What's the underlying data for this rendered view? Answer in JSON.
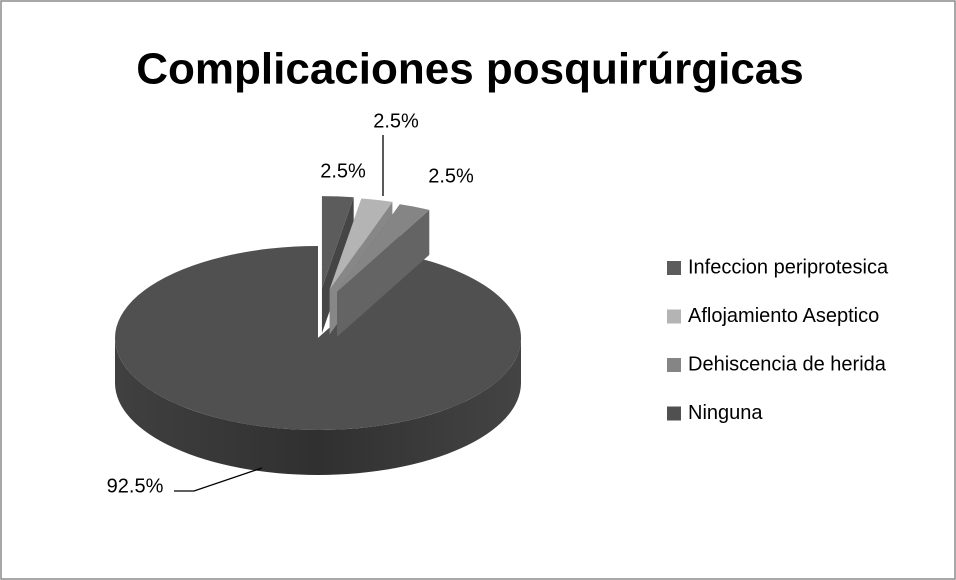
{
  "chart_data": {
    "type": "pie",
    "title": "Complicaciones posquirúrgicas",
    "categories": [
      "Infeccion periprotesica",
      "Aflojamiento Aseptico",
      "Dehiscencia de herida",
      "Ninguna"
    ],
    "values": [
      2.5,
      2.5,
      2.5,
      92.5
    ],
    "value_labels": [
      "2.5%",
      "2.5%",
      "2.5%",
      "92.5%"
    ],
    "colors": [
      "#5c5c5c",
      "#b4b4b4",
      "#858585",
      "#505050"
    ],
    "legend": "right"
  }
}
